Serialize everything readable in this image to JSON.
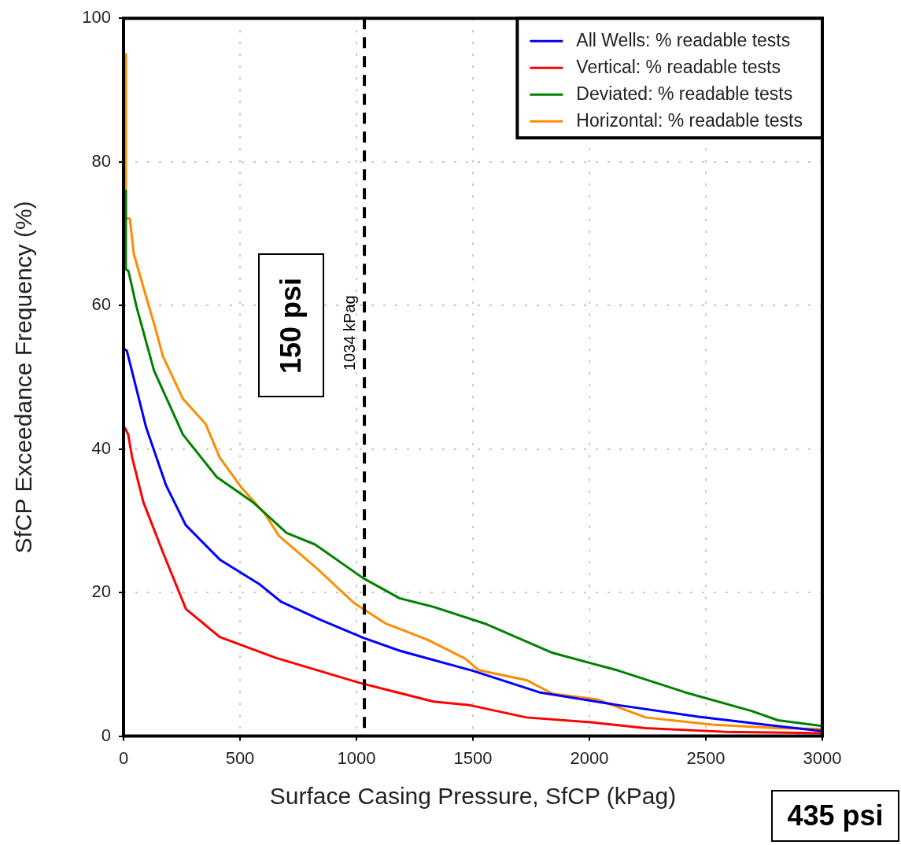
{
  "chart_data": {
    "type": "line",
    "xlabel": "Surface Casing Pressure, SfCP (kPag)",
    "ylabel": "SfCP Exceedance Frequency (%)",
    "xlim": [
      0,
      3000
    ],
    "xticks": [
      0,
      500,
      1000,
      1500,
      2000,
      2500,
      3000
    ],
    "ylim": [
      0,
      100
    ],
    "yticks": [
      0,
      20,
      40,
      60,
      80,
      100
    ],
    "grid": true,
    "legend": "top right",
    "marker": "none",
    "line_style": "solid",
    "series": [
      {
        "name": "All Wells: % readable tests",
        "color": "#0000ff",
        "x": [
          0,
          14,
          97,
          183,
          267,
          413,
          582,
          677,
          846,
          1029,
          1185,
          1500,
          1785,
          2127,
          2469,
          2753,
          3000
        ],
        "values": [
          54,
          53.7,
          43,
          34.9,
          29.4,
          24.6,
          21.2,
          18.7,
          16.2,
          13.7,
          11.9,
          9.1,
          6.1,
          4.3,
          2.7,
          1.6,
          0.7
        ]
      },
      {
        "name": "Vertical: % readable tests",
        "color": "#ff0000",
        "x": [
          5,
          20,
          37,
          85,
          169,
          268,
          413,
          654,
          1016,
          1331,
          1487,
          1730,
          2015,
          2242,
          2584,
          3000
        ],
        "values": [
          43,
          42,
          38.8,
          32.6,
          25.6,
          17.7,
          13.8,
          10.9,
          7.4,
          4.8,
          4.3,
          2.6,
          1.9,
          1.1,
          0.6,
          0.4
        ]
      },
      {
        "name": "Deviated: % readable tests",
        "color": "#008000",
        "x": [
          7,
          10,
          21,
          55,
          131,
          255,
          400,
          555,
          700,
          822,
          1029,
          1185,
          1331,
          1558,
          1842,
          2127,
          2411,
          2696,
          2810,
          3000
        ],
        "values": [
          76,
          65,
          64.8,
          59.9,
          50.9,
          42,
          36.1,
          32.6,
          28.3,
          26.7,
          22,
          19.2,
          18,
          15.6,
          11.6,
          9.1,
          6.1,
          3.5,
          2.2,
          1.4
        ]
      },
      {
        "name": "Horizontal: % readable tests",
        "color": "#ff8c00",
        "x": [
          7,
          10,
          27,
          44,
          89,
          135,
          169,
          255,
          352,
          413,
          509,
          606,
          667,
          822,
          991,
          1124,
          1307,
          1467,
          1524,
          1730,
          1842,
          2035,
          2242,
          2526,
          2810,
          3000
        ],
        "values": [
          95,
          72.1,
          72.1,
          67.2,
          62.1,
          57,
          52.9,
          47,
          43.5,
          38.8,
          34.5,
          31,
          27.9,
          23.6,
          18.5,
          15.7,
          13.4,
          10.8,
          9.2,
          7.8,
          5.9,
          5.1,
          2.6,
          1.6,
          1.1,
          1.0
        ]
      }
    ],
    "ref_lines": [
      {
        "axis": "x",
        "value": 1034,
        "label": "1034 kPag",
        "color": "#000000",
        "line_style": "dashed"
      }
    ],
    "annotations": [
      "150 psi",
      "435 psi"
    ]
  }
}
